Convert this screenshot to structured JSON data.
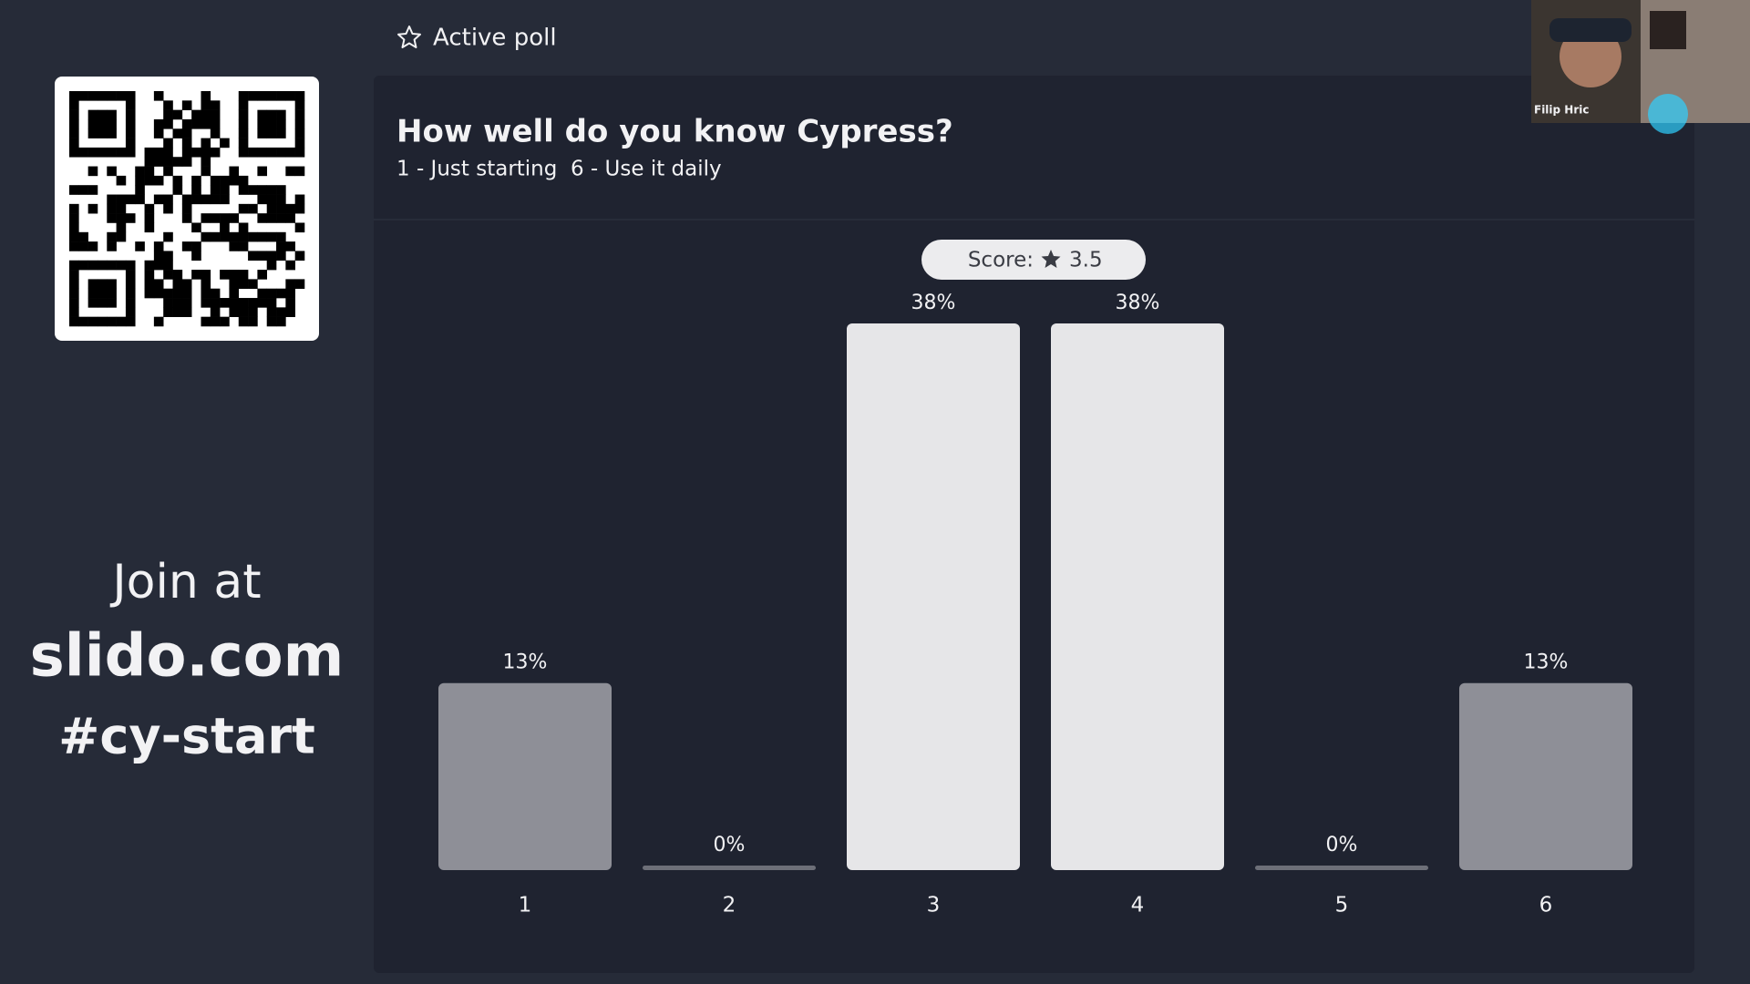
{
  "header": {
    "label": "Active poll"
  },
  "join": {
    "line1": "Join at",
    "site": "slido.com",
    "code": "#cy-start"
  },
  "webcam": {
    "name": "Filip Hric"
  },
  "score": {
    "label": "Score:",
    "value": 3.5
  },
  "chart_data": {
    "type": "bar",
    "title": "How well do you know Cypress?",
    "subtitle": "1 - Just starting  6 - Use it daily",
    "categories": [
      "1",
      "2",
      "3",
      "4",
      "5",
      "6"
    ],
    "values": [
      13,
      0,
      38,
      38,
      0,
      13
    ],
    "value_labels": [
      "13%",
      "0%",
      "38%",
      "38%",
      "0%",
      "13%"
    ],
    "colors": [
      "#8e8f97",
      "#8e8f97",
      "#e6e6e8",
      "#e6e6e8",
      "#8e8f97",
      "#8e8f97"
    ]
  }
}
